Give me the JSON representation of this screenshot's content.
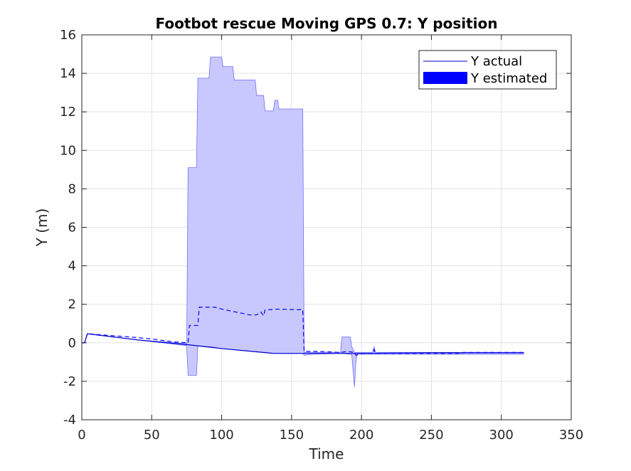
{
  "chart_data": {
    "type": "line",
    "title": "Footbot rescue Moving GPS 0.7: Y position",
    "xlabel": "Time",
    "ylabel": "Y (m)",
    "xlim": [
      0,
      350
    ],
    "ylim": [
      -4,
      16
    ],
    "xticks": [
      0,
      50,
      100,
      150,
      200,
      250,
      300,
      350
    ],
    "yticks": [
      -4,
      -2,
      0,
      2,
      4,
      6,
      8,
      10,
      12,
      14,
      16
    ],
    "grid": true,
    "legend_position": "top-right",
    "legend": [
      "Y actual",
      "Y estimated"
    ],
    "colors": {
      "actual": "#0000cc",
      "estimated_line": "#0000ff",
      "band_fill": "#c8c8ff",
      "band_edge": "#7070ff",
      "grid": "#e3e3e3",
      "axis": "#262626"
    },
    "series": [
      {
        "name": "Y actual",
        "style": "solid",
        "x": [
          0,
          2,
          4,
          40,
          76,
          100,
          137,
          158,
          160,
          200,
          250,
          300,
          316
        ],
        "y": [
          0,
          0,
          0.47,
          0.15,
          -0.1,
          -0.3,
          -0.55,
          -0.55,
          -0.55,
          -0.55,
          -0.52,
          -0.52,
          -0.52
        ]
      },
      {
        "name": "Y estimated",
        "style": "dashed",
        "x": [
          0,
          2,
          4,
          20,
          35,
          50,
          65,
          76,
          77,
          83,
          84,
          95,
          100,
          110,
          120,
          125,
          128,
          130,
          131,
          140,
          155,
          158,
          159,
          170,
          185,
          190,
          195,
          196,
          200,
          208,
          209,
          210,
          215,
          230,
          272,
          273,
          316
        ],
        "y": [
          0,
          0,
          0.47,
          0.38,
          0.3,
          0.2,
          0.05,
          0.0,
          0.9,
          0.9,
          1.85,
          1.85,
          1.75,
          1.6,
          1.45,
          1.45,
          1.6,
          1.4,
          1.7,
          1.75,
          1.72,
          1.72,
          -0.45,
          -0.45,
          -0.5,
          -0.45,
          -0.5,
          -0.65,
          -0.55,
          -0.55,
          -0.35,
          -0.55,
          -0.55,
          -0.55,
          -0.55,
          -0.5,
          -0.5
        ]
      }
    ],
    "band": {
      "name": "Y estimated uncertainty",
      "x": [
        0,
        2,
        4,
        40,
        75,
        76,
        77,
        82,
        83,
        91,
        92,
        100,
        101,
        108,
        109,
        116,
        117,
        124,
        125,
        130,
        131,
        137,
        138,
        140,
        141,
        157,
        158,
        159,
        165,
        185,
        186,
        192,
        193,
        195,
        196,
        197,
        200,
        208,
        209,
        210,
        215,
        250,
        300,
        316
      ],
      "upper": [
        0,
        0,
        0.47,
        0.15,
        -0.05,
        9.1,
        9.1,
        9.1,
        13.75,
        13.75,
        14.85,
        14.85,
        14.35,
        14.35,
        13.65,
        13.65,
        13.65,
        13.65,
        12.85,
        12.85,
        12.05,
        12.05,
        12.6,
        12.6,
        12.15,
        12.15,
        12.15,
        -0.5,
        -0.5,
        -0.5,
        0.3,
        0.3,
        -0.2,
        -0.5,
        -0.5,
        -0.5,
        -0.5,
        -0.5,
        -0.2,
        -0.5,
        -0.5,
        -0.5,
        -0.5,
        -0.5
      ],
      "lower": [
        0,
        0,
        0.47,
        0.15,
        -0.15,
        -1.7,
        -1.7,
        -1.7,
        -0.15,
        -0.2,
        -0.2,
        -0.3,
        -0.3,
        -0.35,
        -0.35,
        -0.4,
        -0.4,
        -0.45,
        -0.45,
        -0.5,
        -0.5,
        -0.55,
        -0.55,
        -0.55,
        -0.55,
        -0.55,
        -0.55,
        -0.65,
        -0.6,
        -0.55,
        -0.55,
        -0.6,
        -0.6,
        -2.3,
        -1.0,
        -0.6,
        -0.6,
        -0.6,
        -0.6,
        -0.6,
        -0.6,
        -0.6,
        -0.6,
        -0.6
      ]
    }
  }
}
